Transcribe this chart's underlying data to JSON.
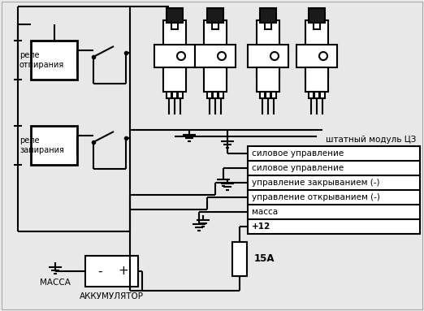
{
  "bg_color": "#e8e8e8",
  "line_color": "#000000",
  "relay1_label": "реле\nотпирания",
  "relay2_label": "реле\nзапирания",
  "module_label": "штатный модуль ЦЗ",
  "rows": [
    "силовое управление",
    "силовое управление",
    "управление закрыванием (-)",
    "управление открыванием (-)",
    "масса",
    "+12"
  ],
  "fuse_label": "15А",
  "mass_label": "МАССА",
  "battery_label": "АККУМУЛЯТОР"
}
